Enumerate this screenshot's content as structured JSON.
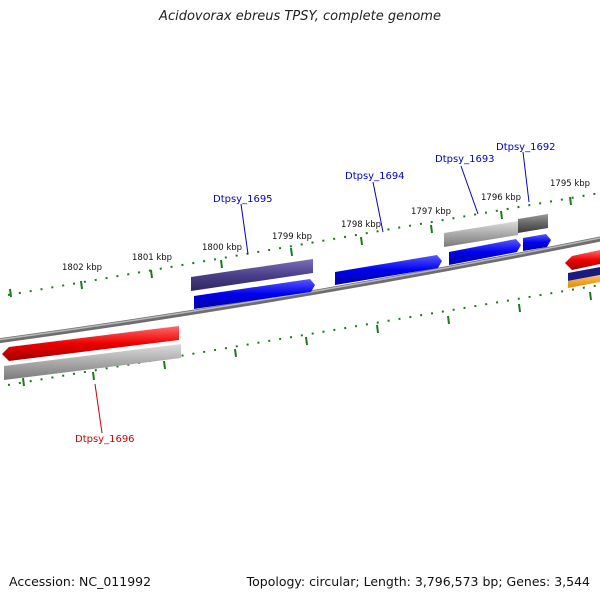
{
  "title": "Acidovorax ebreus TPSY, complete genome",
  "footer": {
    "accession": "Accession: NC_011992",
    "summary": "Topology: circular; Length: 3,796,573 bp; Genes: 3,544"
  },
  "colors": {
    "forward_gene": "#0000ee",
    "reverse_gene": "#ee0000",
    "feature_purple": "#4a3f8a",
    "feature_gray": "#aaaaaa",
    "feature_darkgray": "#666666",
    "backbone": "#888888",
    "tick": "#1a7a1a",
    "label_forward": "#0000cc",
    "label_reverse": "#cc0000"
  },
  "ticks": [
    "1802 kbp",
    "1801 kbp",
    "1800 kbp",
    "1799 kbp",
    "1798 kbp",
    "1797 kbp",
    "1796 kbp",
    "1795 kbp"
  ],
  "gene_labels": {
    "forward": [
      "Dtpsy_1695",
      "Dtpsy_1694",
      "Dtpsy_1693",
      "Dtpsy_1692"
    ],
    "reverse": [
      "Dtpsy_1696"
    ]
  }
}
